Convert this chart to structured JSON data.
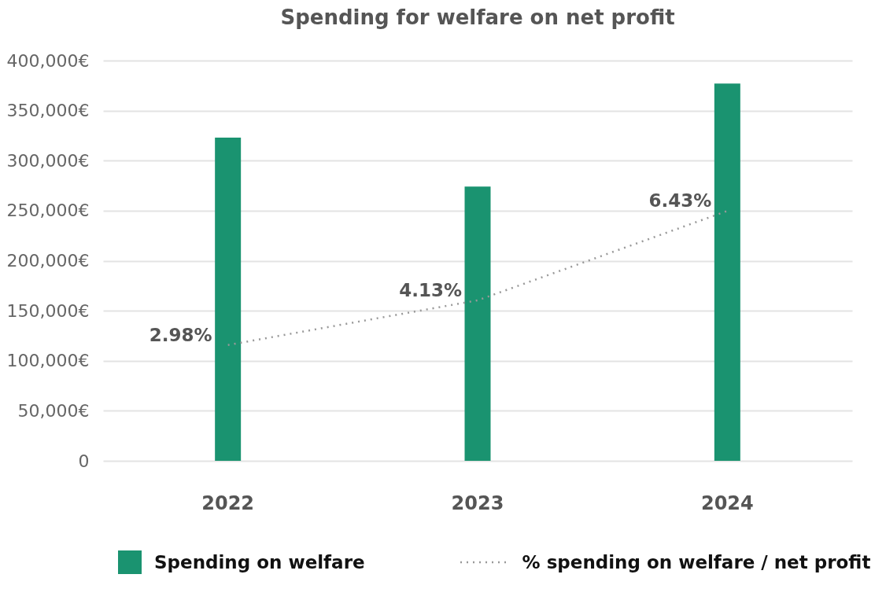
{
  "chart_data": {
    "type": "bar",
    "title": "Spending for welfare on net profit",
    "categories": [
      "2022",
      "2023",
      "2024"
    ],
    "series": [
      {
        "name": "Spending on welfare",
        "color": "#1a9370",
        "values": [
          323000,
          274000,
          377000
        ]
      },
      {
        "name": "% spending on welfare / net profit",
        "type": "line",
        "axis": "y2",
        "color": "#999999",
        "line_style": "dotted",
        "marker": "none",
        "values": [
          2.98,
          4.13,
          6.43
        ],
        "value_labels": [
          "2.98%",
          "4.13%",
          "6.43%"
        ]
      }
    ],
    "ylim": [
      0,
      400000
    ],
    "yticks": [
      0,
      {
        "value": 50000,
        "label": "50,000€"
      },
      {
        "value": 100000,
        "label": "100,000€"
      },
      {
        "value": 150000,
        "label": "150,000€"
      },
      {
        "value": 200000,
        "label": "200,000€"
      },
      {
        "value": 250000,
        "label": "250,000€"
      },
      {
        "value": 300000,
        "label": "300,000€"
      },
      {
        "value": 350000,
        "label": "350,000€"
      },
      {
        "value": 400000,
        "label": "400,000€"
      }
    ],
    "y2lim": [
      0,
      10.3
    ],
    "grid": "y",
    "legend": "bottom"
  }
}
